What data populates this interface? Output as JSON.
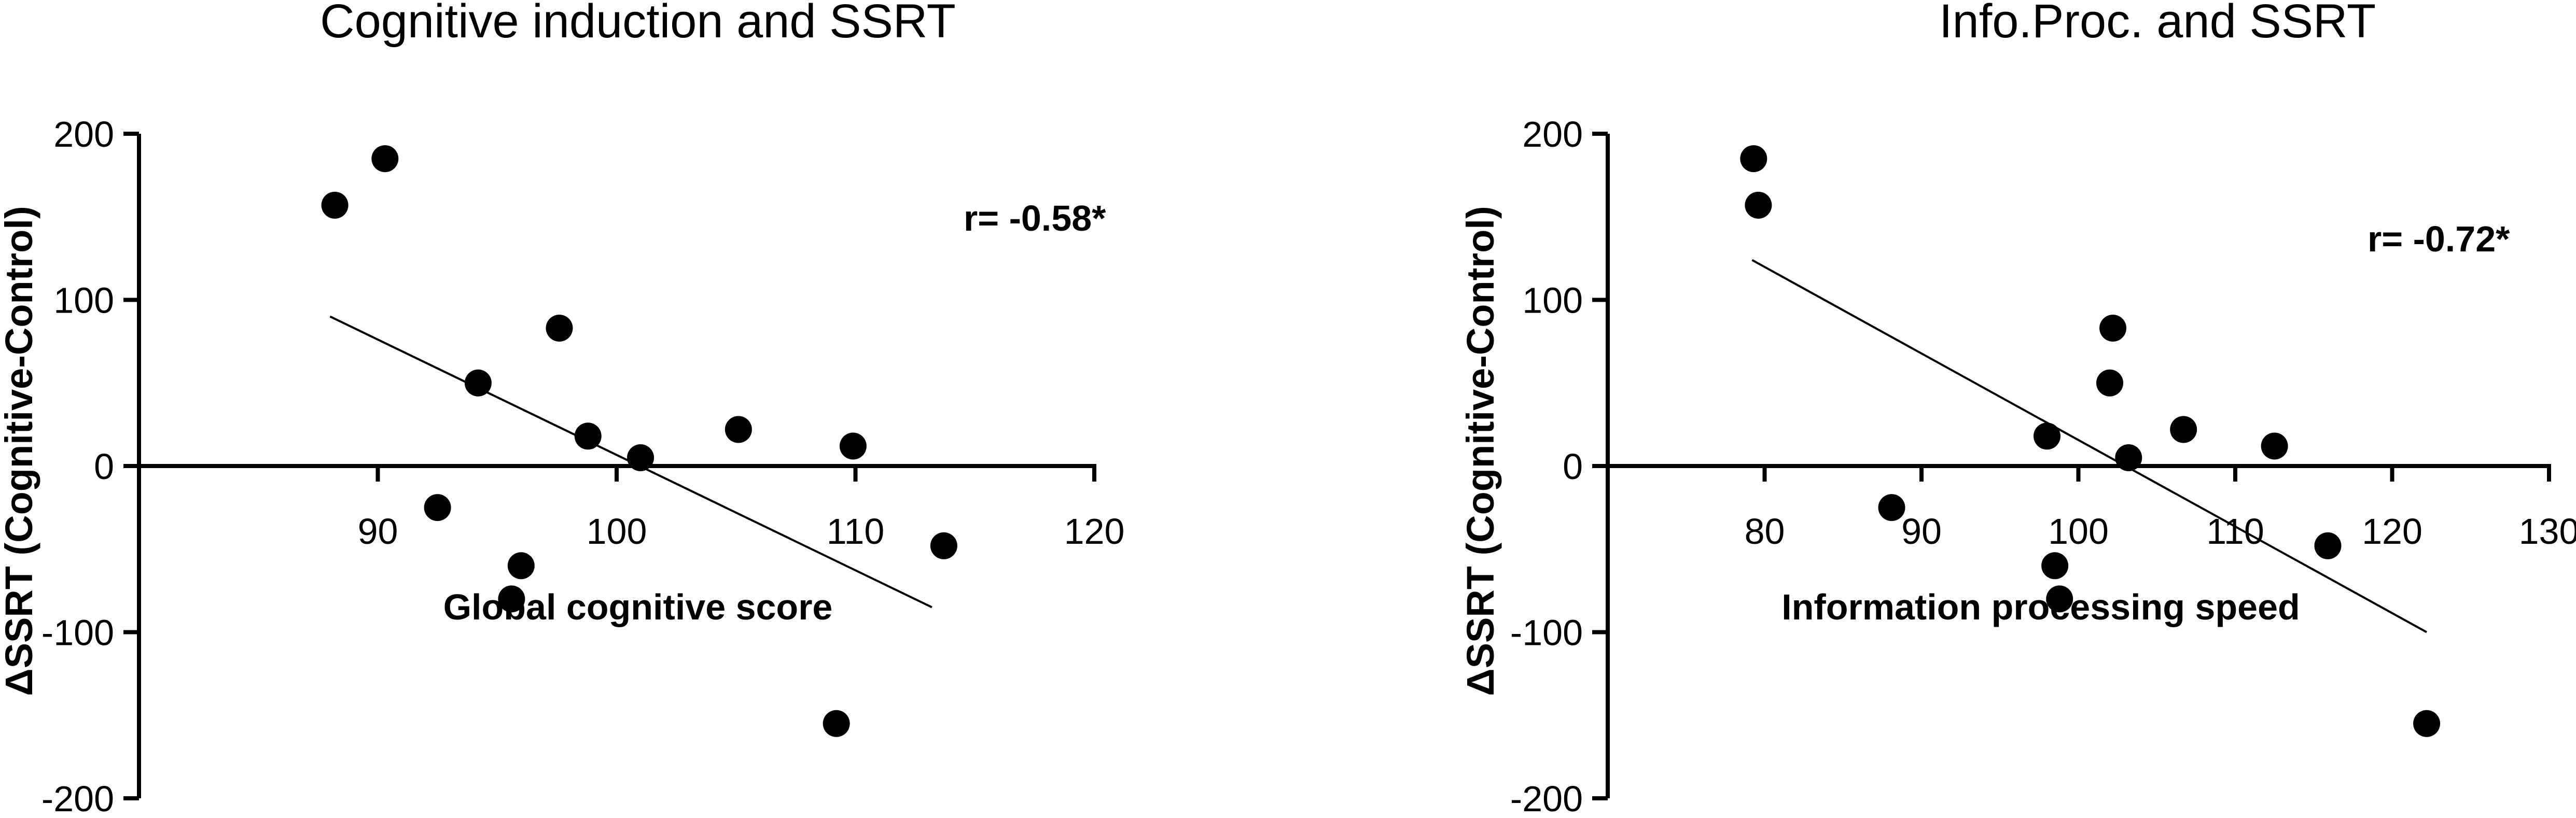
{
  "chart_data": [
    {
      "type": "scatter",
      "title": "Cognitive induction and SSRT",
      "xlabel": "Global cognitive score",
      "ylabel": "ΔSSRT (Cognitive-Control)",
      "annotation": "r= -0.58*",
      "xlim": [
        80,
        120
      ],
      "ylim": [
        -200,
        200
      ],
      "x_ticks": [
        90,
        100,
        110,
        120
      ],
      "y_ticks": [
        200,
        100,
        0,
        -100,
        -200
      ],
      "grid": false,
      "points": [
        {
          "x": 88.2,
          "y": 157
        },
        {
          "x": 90.3,
          "y": 185
        },
        {
          "x": 94.2,
          "y": 50
        },
        {
          "x": 92.5,
          "y": -25
        },
        {
          "x": 96.0,
          "y": -60
        },
        {
          "x": 95.6,
          "y": -80
        },
        {
          "x": 97.6,
          "y": 83
        },
        {
          "x": 98.8,
          "y": 18
        },
        {
          "x": 101.0,
          "y": 5
        },
        {
          "x": 105.1,
          "y": 22
        },
        {
          "x": 109.9,
          "y": 12
        },
        {
          "x": 113.7,
          "y": -48
        },
        {
          "x": 109.2,
          "y": -155
        }
      ],
      "fit_line": {
        "x": [
          88.0,
          113.2
        ],
        "y": [
          90,
          -85
        ]
      }
    },
    {
      "type": "scatter",
      "title": "Info.Proc. and SSRT",
      "xlabel": "Information processing speed",
      "ylabel": "ΔSSRT (Cognitive-Control)",
      "annotation": "r= -0.72*",
      "xlim": [
        70,
        130
      ],
      "ylim": [
        -200,
        200
      ],
      "x_ticks": [
        80,
        90,
        100,
        110,
        120,
        130
      ],
      "y_ticks": [
        200,
        100,
        0,
        -100,
        -200
      ],
      "grid": false,
      "points": [
        {
          "x": 79.3,
          "y": 185
        },
        {
          "x": 79.6,
          "y": 157
        },
        {
          "x": 88.1,
          "y": -25
        },
        {
          "x": 98.0,
          "y": 18
        },
        {
          "x": 98.5,
          "y": -60
        },
        {
          "x": 98.8,
          "y": -80
        },
        {
          "x": 102.2,
          "y": 83
        },
        {
          "x": 102.0,
          "y": 50
        },
        {
          "x": 103.2,
          "y": 5
        },
        {
          "x": 106.7,
          "y": 22
        },
        {
          "x": 112.5,
          "y": 12
        },
        {
          "x": 115.9,
          "y": -48
        },
        {
          "x": 122.2,
          "y": -155
        }
      ],
      "fit_line": {
        "x": [
          79.2,
          122.2
        ],
        "y": [
          124,
          -100
        ]
      }
    }
  ]
}
